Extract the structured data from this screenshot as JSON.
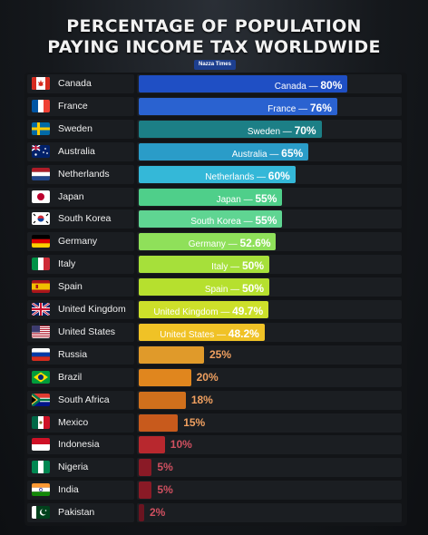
{
  "header": {
    "title_line1": "PERCENTAGE OF POPULATION",
    "title_line2": "PAYING INCOME TAX WORLDWIDE",
    "source": "Nazza Times"
  },
  "chart_data": {
    "type": "bar",
    "title": "PERCENTAGE OF POPULATION PAYING INCOME TAX WORLDWIDE",
    "unit": "%",
    "xlim": [
      0,
      100
    ],
    "categories": [
      "Canada",
      "France",
      "Sweden",
      "Australia",
      "Netherlands",
      "Japan",
      "South Korea",
      "Germany",
      "Italy",
      "Spain",
      "United Kingdom",
      "United States",
      "Russia",
      "Brazil",
      "South Africa",
      "Mexico",
      "Indonesia",
      "Nigeria",
      "India",
      "Pakistan"
    ],
    "values": [
      80,
      76,
      70,
      65,
      60,
      55,
      55,
      52.6,
      50,
      50,
      49.7,
      48.2,
      25,
      20,
      18,
      15,
      10,
      5,
      5,
      2
    ],
    "value_labels": [
      "80%",
      "76%",
      "70%",
      "65%",
      "60%",
      "55%",
      "55%",
      "52.6%",
      "50%",
      "50%",
      "49.7%",
      "48.2%",
      "25%",
      "20%",
      "18%",
      "15%",
      "10%",
      "5%",
      "5%",
      "2%"
    ],
    "bar_colors": [
      "#1f4fc4",
      "#2a62d0",
      "#1c7f86",
      "#2a9cc8",
      "#34b8d8",
      "#4fcf8a",
      "#5fd592",
      "#8fe05a",
      "#a6e03a",
      "#b6e02e",
      "#cde02a",
      "#f0c226",
      "#e09a2a",
      "#e0861e",
      "#d0701c",
      "#c85a1c",
      "#b8282e",
      "#8a1a26",
      "#8a1a26",
      "#6a1420"
    ],
    "icons": [
      "canada-flag",
      "france-flag",
      "sweden-flag",
      "australia-flag",
      "netherlands-flag",
      "japan-flag",
      "south-korea-flag",
      "germany-flag",
      "italy-flag",
      "spain-flag",
      "uk-flag",
      "usa-flag",
      "russia-flag",
      "brazil-flag",
      "south-africa-flag",
      "mexico-flag",
      "indonesia-flag",
      "nigeria-flag",
      "india-flag",
      "pakistan-flag"
    ]
  }
}
